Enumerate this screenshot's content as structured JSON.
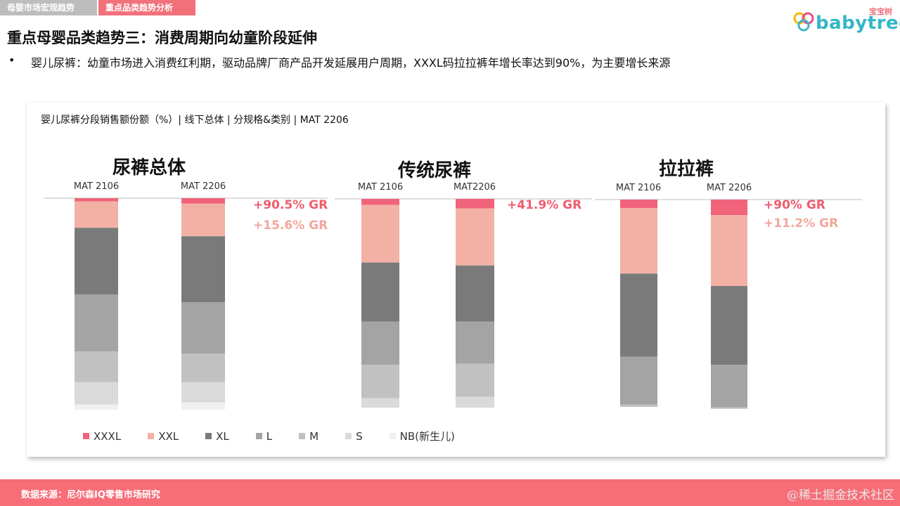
{
  "tabs": [
    "母婴市场宏观趋势",
    "重点品类趋势分析"
  ],
  "logo": {
    "text": "babytree",
    "sub": "宝宝树"
  },
  "title": "重点母婴品类趋势三：消费周期向幼童阶段延伸",
  "bullet": "婴儿尿裤：幼童市场进入消费红利期，驱动品牌厂商产品开发延展用户周期，XXXL码拉拉裤年增长率达到90%，为主要增长来源",
  "chart_subtitle": "婴儿尿裤分段销售额份额（%）| 线下总体 | 分规格&类别 | MAT 2206",
  "colors": {
    "XXXL": "#f0637a",
    "XXL": "#f3b1a6",
    "XL": "#7a7a7a",
    "L": "#a4a4a4",
    "M": "#c1c1c1",
    "S": "#dadada",
    "NB": "#f0f0f0",
    "gr_red": "#ef5c6e",
    "gr_pink": "#f1a79c"
  },
  "legend": [
    "XXXL",
    "XXL",
    "XL",
    "L",
    "M",
    "S",
    "NB(新生儿)"
  ],
  "panels": [
    {
      "title": "尿裤总体",
      "col_labels": [
        "MAT 2106",
        "MAT 2206"
      ],
      "gr": [
        "+90.5% GR",
        "+15.6% GR"
      ]
    },
    {
      "title": "传统尿裤",
      "col_labels": [
        "MAT 2106",
        "MAT2206"
      ],
      "gr": [
        "+41.9% GR"
      ]
    },
    {
      "title": "拉拉裤",
      "col_labels": [
        "MAT 2106",
        "MAT 2206"
      ],
      "gr": [
        "+90% GR",
        "+11.2% GR"
      ]
    }
  ],
  "chart_data": [
    {
      "type": "bar",
      "stacked": true,
      "title": "尿裤总体",
      "categories": [
        "MAT 2106",
        "MAT 2206"
      ],
      "series": [
        {
          "name": "XXXL",
          "values": [
            1.5,
            2.6
          ]
        },
        {
          "name": "XXL",
          "values": [
            12.5,
            15.4
          ]
        },
        {
          "name": "XL",
          "values": [
            31.5,
            31.2
          ]
        },
        {
          "name": "L",
          "values": [
            27.0,
            24.3
          ]
        },
        {
          "name": "M",
          "values": [
            14.5,
            13.5
          ]
        },
        {
          "name": "S",
          "values": [
            10.5,
            9.5
          ]
        },
        {
          "name": "NB(新生儿)",
          "values": [
            2.5,
            3.5
          ]
        }
      ],
      "annotations": [
        "+90.5% GR",
        "+15.6% GR"
      ],
      "ylim": [
        0,
        100
      ]
    },
    {
      "type": "bar",
      "stacked": true,
      "title": "传统尿裤",
      "categories": [
        "MAT 2106",
        "MAT2206"
      ],
      "series": [
        {
          "name": "XXXL",
          "values": [
            2.9,
            4.6
          ]
        },
        {
          "name": "XXL",
          "values": [
            27.6,
            27.3
          ]
        },
        {
          "name": "XL",
          "values": [
            28.3,
            26.9
          ]
        },
        {
          "name": "L",
          "values": [
            20.7,
            20.2
          ]
        },
        {
          "name": "M",
          "values": [
            16.0,
            15.8
          ]
        },
        {
          "name": "S",
          "values": [
            4.5,
            5.2
          ]
        },
        {
          "name": "NB(新生儿)",
          "values": [
            0,
            0
          ]
        }
      ],
      "annotations": [
        "+41.9% GR"
      ],
      "ylim": [
        0,
        100
      ]
    },
    {
      "type": "bar",
      "stacked": true,
      "title": "拉拉裤",
      "categories": [
        "MAT 2106",
        "MAT 2206"
      ],
      "series": [
        {
          "name": "XXXL",
          "values": [
            4.1,
            7.5
          ]
        },
        {
          "name": "XXL",
          "values": [
            31.6,
            34.2
          ]
        },
        {
          "name": "XL",
          "values": [
            40.1,
            38.0
          ]
        },
        {
          "name": "L",
          "values": [
            23.1,
            20.5
          ]
        },
        {
          "name": "M",
          "values": [
            1.1,
            0.7
          ]
        },
        {
          "name": "S",
          "values": [
            0,
            0
          ]
        },
        {
          "name": "NB(新生儿)",
          "values": [
            0,
            0
          ]
        }
      ],
      "annotations": [
        "+90% GR",
        "+11.2% GR"
      ],
      "ylim": [
        0,
        100
      ]
    }
  ],
  "footer": {
    "source": "数据来源：尼尔森IQ零售市场研究"
  },
  "watermark": "@稀土掘金技术社区"
}
